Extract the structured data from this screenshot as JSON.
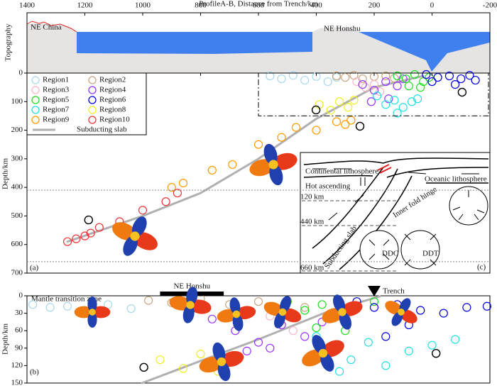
{
  "chart_data": [
    {
      "type": "scatter",
      "panel_label": "(a)",
      "title": "ProfileA-B, Distance from Trench/km",
      "y_label": "Depth/km",
      "topo_label": "Topography",
      "xlim": [
        1400,
        -200
      ],
      "xticks": [
        1400,
        1200,
        1000,
        800,
        600,
        400,
        200,
        0,
        -200
      ],
      "ylim": [
        0,
        700
      ],
      "yticks": [
        0,
        100,
        200,
        300,
        400,
        500,
        600,
        700
      ],
      "hlines": [
        410,
        660
      ],
      "zoom_box": {
        "x": [
          600,
          -200
        ],
        "y": [
          0,
          150
        ]
      },
      "annotations": [
        {
          "text": "NE China"
        },
        {
          "text": "NE Honshu"
        },
        {
          "text": "Mantle transition zone"
        }
      ],
      "legend": "upper left",
      "series": [
        {
          "name": "Region1",
          "color": "#a8d8ea",
          "x": [
            560,
            520,
            480,
            440,
            400,
            360,
            330
          ],
          "y": [
            10,
            20,
            8,
            25,
            12,
            30,
            15
          ]
        },
        {
          "name": "Region2",
          "color": "#c8a47e",
          "x": [
            330,
            300,
            270,
            240,
            200,
            160,
            130
          ],
          "y": [
            10,
            15,
            8,
            20,
            12,
            10,
            18
          ]
        },
        {
          "name": "Region3",
          "color": "#f7b6c8",
          "x": [
            260,
            230,
            200,
            180
          ],
          "y": [
            30,
            50,
            40,
            65
          ]
        },
        {
          "name": "Region4",
          "color": "#9932ff",
          "x": [
            240,
            200,
            160,
            120,
            100,
            150,
            210
          ],
          "y": [
            40,
            60,
            30,
            45,
            20,
            90,
            100
          ]
        },
        {
          "name": "Region5",
          "color": "#22dd22",
          "x": [
            120,
            90,
            60,
            30,
            10,
            80,
            40
          ],
          "y": [
            10,
            20,
            5,
            30,
            15,
            45,
            50
          ]
        },
        {
          "name": "Region6",
          "color": "#0000dd",
          "x": [
            20,
            -20,
            -60,
            -100,
            -130,
            -150,
            -80,
            0
          ],
          "y": [
            5,
            15,
            10,
            20,
            8,
            25,
            40,
            30
          ]
        },
        {
          "name": "Region7",
          "color": "#22e0e0",
          "x": [
            190,
            160,
            130,
            100,
            70,
            50,
            120
          ],
          "y": [
            80,
            110,
            95,
            120,
            100,
            90,
            140
          ]
        },
        {
          "name": "Region8",
          "color": "#eeee22",
          "x": [
            390,
            350,
            320,
            290,
            270
          ],
          "y": [
            110,
            130,
            100,
            120,
            95
          ]
        },
        {
          "name": "Region9",
          "color": "#ff9900",
          "x": [
            280,
            300,
            330,
            400,
            470,
            520,
            600,
            690,
            760,
            860,
            900
          ],
          "y": [
            165,
            180,
            170,
            200,
            190,
            225,
            250,
            320,
            340,
            385,
            400
          ]
        },
        {
          "name": "Region10",
          "color": "#ee3333",
          "x": [
            880,
            920,
            1000,
            1080,
            1150,
            1180,
            1200,
            1230,
            1260
          ],
          "y": [
            420,
            450,
            480,
            520,
            540,
            560,
            570,
            580,
            590
          ]
        }
      ],
      "slab": {
        "name": "Subducting slab",
        "color": "#b0b0b0",
        "x": [
          30,
          200,
          400,
          600,
          800,
          1000,
          1260
        ],
        "y": [
          10,
          50,
          160,
          300,
          420,
          500,
          590
        ]
      },
      "extra_points": {
        "color": "#000000",
        "x": [
          401,
          249,
          -104,
          1187
        ],
        "y": [
          129,
          186,
          67,
          514
        ]
      }
    },
    {
      "type": "scatter",
      "panel_label": "(b)",
      "y_label": "Depth/km",
      "xlim": [
        600,
        -200
      ],
      "ylim": [
        0,
        150
      ],
      "yticks": [
        0,
        30,
        60,
        90,
        120,
        150
      ],
      "annotations": [
        {
          "text": "NE Honshu",
          "x": [
            370,
            260
          ]
        },
        {
          "text": "Trench",
          "x": 0
        }
      ],
      "series": [
        {
          "color": "#a8d8ea",
          "x": [
            590,
            560,
            530,
            500,
            460,
            420
          ],
          "y": [
            15,
            20,
            18,
            25,
            15,
            22
          ]
        },
        {
          "color": "#c8a47e",
          "x": [
            390,
            350,
            300,
            250,
            200,
            150,
            120
          ],
          "y": [
            8,
            12,
            5,
            15,
            10,
            8,
            20
          ]
        },
        {
          "color": "#f7b6c8",
          "x": [
            180,
            160,
            140
          ],
          "y": [
            35,
            50,
            60
          ]
        },
        {
          "color": "#9932ff",
          "x": [
            280,
            240,
            200,
            160,
            120,
            90,
            220,
            180
          ],
          "y": [
            40,
            60,
            80,
            50,
            70,
            45,
            95,
            90
          ]
        },
        {
          "color": "#22dd22",
          "x": [
            150,
            120,
            90,
            60,
            30,
            0,
            100,
            50
          ],
          "y": [
            10,
            25,
            15,
            35,
            20,
            10,
            55,
            60
          ]
        },
        {
          "color": "#0000dd",
          "x": [
            30,
            0,
            -40,
            -80,
            -120,
            -160,
            -195,
            -60,
            -20
          ],
          "y": [
            10,
            20,
            15,
            25,
            30,
            20,
            18,
            50,
            70
          ]
        },
        {
          "color": "#22e0e0",
          "x": [
            100,
            70,
            40,
            10,
            -20,
            -60,
            -100,
            -140,
            60
          ],
          "y": [
            70,
            90,
            110,
            80,
            120,
            95,
            85,
            75,
            130
          ]
        },
        {
          "color": "#eeee22",
          "x": [
            370,
            330,
            300,
            270,
            250
          ],
          "y": [
            110,
            125,
            100,
            130,
            115
          ]
        }
      ],
      "slab": {
        "color": "#b0b0b0",
        "x": [
          -10,
          82,
          200,
          300,
          401
        ],
        "y": [
          1,
          28,
          75,
          112,
          150
        ]
      },
      "extra_points": {
        "color": "#000000",
        "x": [
          398,
          -107
        ],
        "y": [
          123,
          99
        ]
      }
    }
  ],
  "inset": {
    "label": "(c)",
    "continental": "Continental lithosphere",
    "oceanic": "Oceanic lithosphere",
    "hot": "Hot ascending",
    "d120": "120 km",
    "d440": "440 km",
    "d660": "660 km",
    "hinge": "Inner fold hinge",
    "slab": "Subducting slab",
    "ddc": "DDC",
    "ddt": "DDT"
  }
}
